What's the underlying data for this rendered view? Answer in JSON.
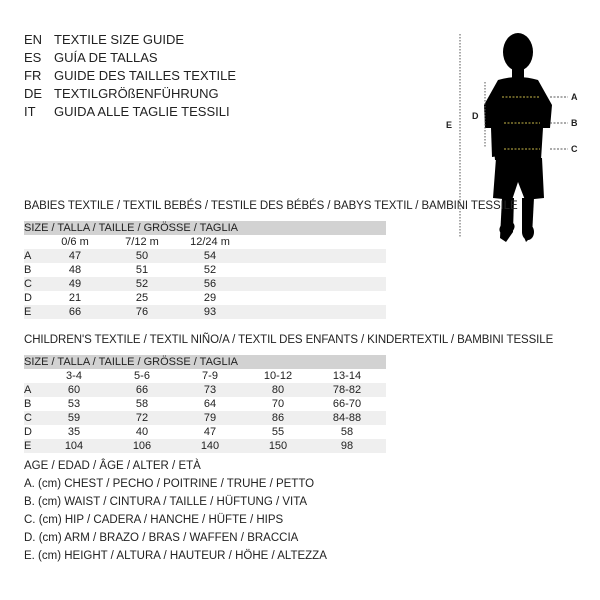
{
  "languages": [
    {
      "code": "EN",
      "text": "TEXTILE SIZE GUIDE"
    },
    {
      "code": "ES",
      "text": "GUÍA DE TALLAS"
    },
    {
      "code": "FR",
      "text": "GUIDE DES TAILLES TEXTILE"
    },
    {
      "code": "DE",
      "text": "TEXTILGRÖßENFÜHRUNG"
    },
    {
      "code": "IT",
      "text": "GUIDA ALLE TAGLIE TESSILI"
    }
  ],
  "figure": {
    "labels": {
      "a": "A",
      "b": "B",
      "c": "C",
      "d": "D",
      "e": "E"
    },
    "guide_color": "#c8b84a"
  },
  "babies": {
    "title": "BABIES TEXTILE / TEXTIL BEBÉS / TESTILE DES BÉBÉS / BABYS TEXTIL / BAMBINI TESSILE",
    "header": "SIZE / TALLA / TAILLE / GRÖSSE / TAGLIA",
    "columns": [
      "0/6 m",
      "7/12 m",
      "12/24 m"
    ],
    "rows": [
      {
        "label": "A",
        "values": [
          "47",
          "50",
          "54"
        ]
      },
      {
        "label": "B",
        "values": [
          "48",
          "51",
          "52"
        ]
      },
      {
        "label": "C",
        "values": [
          "49",
          "52",
          "56"
        ]
      },
      {
        "label": "D",
        "values": [
          "21",
          "25",
          "29"
        ]
      },
      {
        "label": "E",
        "values": [
          "66",
          "76",
          "93"
        ]
      }
    ]
  },
  "children": {
    "title": "CHILDREN'S TEXTILE / TEXTIL NIÑO/A / TEXTIL DES ENFANTS / KINDERTEXTIL / BAMBINI TESSILE",
    "header": "SIZE / TALLA / TAILLE / GRÖSSE / TAGLIA",
    "columns": [
      "3-4",
      "5-6",
      "7-9",
      "10-12",
      "13-14"
    ],
    "rows": [
      {
        "label": "A",
        "values": [
          "60",
          "66",
          "73",
          "80",
          "78-82"
        ]
      },
      {
        "label": "B",
        "values": [
          "53",
          "58",
          "64",
          "70",
          "66-70"
        ]
      },
      {
        "label": "C",
        "values": [
          "59",
          "72",
          "79",
          "86",
          "84-88"
        ]
      },
      {
        "label": "D",
        "values": [
          "35",
          "40",
          "47",
          "55",
          "58"
        ]
      },
      {
        "label": "E",
        "values": [
          "104",
          "106",
          "140",
          "150",
          "98"
        ]
      }
    ]
  },
  "legend": [
    "AGE / EDAD / ÂGE / ALTER / ETÀ",
    "A. (cm) CHEST / PECHO / POITRINE / TRUHE / PETTO",
    "B. (cm) WAIST / CINTURA / TAILLE / HÜFTUNG / VITA",
    "C. (cm) HIP / CADERA / HANCHE / HÜFTE / HIPS",
    "D. (cm) ARM / BRAZO / BRAS / WAFFEN / BRACCIA",
    "E. (cm) HEIGHT / ALTURA / HAUTEUR / HÖHE / ALTEZZA"
  ]
}
